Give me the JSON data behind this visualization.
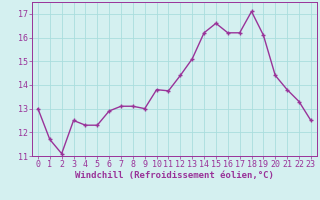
{
  "x": [
    0,
    1,
    2,
    3,
    4,
    5,
    6,
    7,
    8,
    9,
    10,
    11,
    12,
    13,
    14,
    15,
    16,
    17,
    18,
    19,
    20,
    21,
    22,
    23
  ],
  "y": [
    13.0,
    11.7,
    11.1,
    12.5,
    12.3,
    12.3,
    12.9,
    13.1,
    13.1,
    13.0,
    13.8,
    13.75,
    14.4,
    15.1,
    16.2,
    16.6,
    16.2,
    16.2,
    17.1,
    16.1,
    14.4,
    13.8,
    13.3,
    12.5
  ],
  "line_color": "#993399",
  "marker": "+",
  "marker_size": 3,
  "linewidth": 1.0,
  "background_color": "#d4f0f0",
  "grid_color": "#aadddd",
  "xlabel": "Windchill (Refroidissement éolien,°C)",
  "xlabel_fontsize": 6.5,
  "tick_fontsize": 6,
  "ylim": [
    11,
    17.5
  ],
  "xlim": [
    -0.5,
    23.5
  ],
  "yticks": [
    11,
    12,
    13,
    14,
    15,
    16,
    17
  ],
  "xticks": [
    0,
    1,
    2,
    3,
    4,
    5,
    6,
    7,
    8,
    9,
    10,
    11,
    12,
    13,
    14,
    15,
    16,
    17,
    18,
    19,
    20,
    21,
    22,
    23
  ]
}
